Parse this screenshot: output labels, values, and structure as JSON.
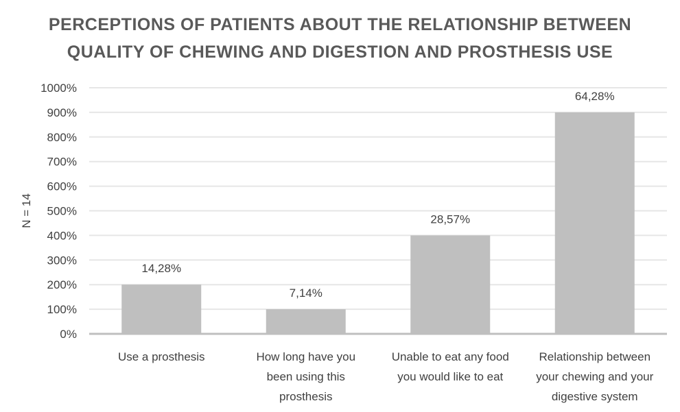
{
  "chart_data": {
    "type": "bar",
    "title_lines": [
      "PERCEPTIONS OF PATIENTS ABOUT THE RELATIONSHIP BETWEEN",
      "QUALITY OF CHEWING AND DIGESTION AND PROSTHESIS USE"
    ],
    "ylabel": "N = 14",
    "xlabel": "",
    "ylim": [
      0,
      1000
    ],
    "yticks": [
      0,
      100,
      200,
      300,
      400,
      500,
      600,
      700,
      800,
      900,
      1000
    ],
    "ytick_labels": [
      "0%",
      "100%",
      "200%",
      "300%",
      "400%",
      "500%",
      "600%",
      "700%",
      "800%",
      "900%",
      "1000%"
    ],
    "categories": [
      [
        "Use a prosthesis"
      ],
      [
        "How long have you",
        "been using this",
        "prosthesis"
      ],
      [
        "Unable to eat any food",
        "you would like to eat"
      ],
      [
        "Relationship between",
        "your chewing and your",
        "digestive system"
      ]
    ],
    "values": [
      200,
      100,
      400,
      900
    ],
    "data_labels": [
      "14,28%",
      "7,14%",
      "28,57%",
      "64,28%"
    ],
    "grid": true,
    "legend": "none",
    "colors": {
      "bar": "#bfbfbf",
      "grid": "#e6e6e6",
      "axis": "#bfbfbf",
      "title": "#595959",
      "text": "#404040"
    }
  }
}
